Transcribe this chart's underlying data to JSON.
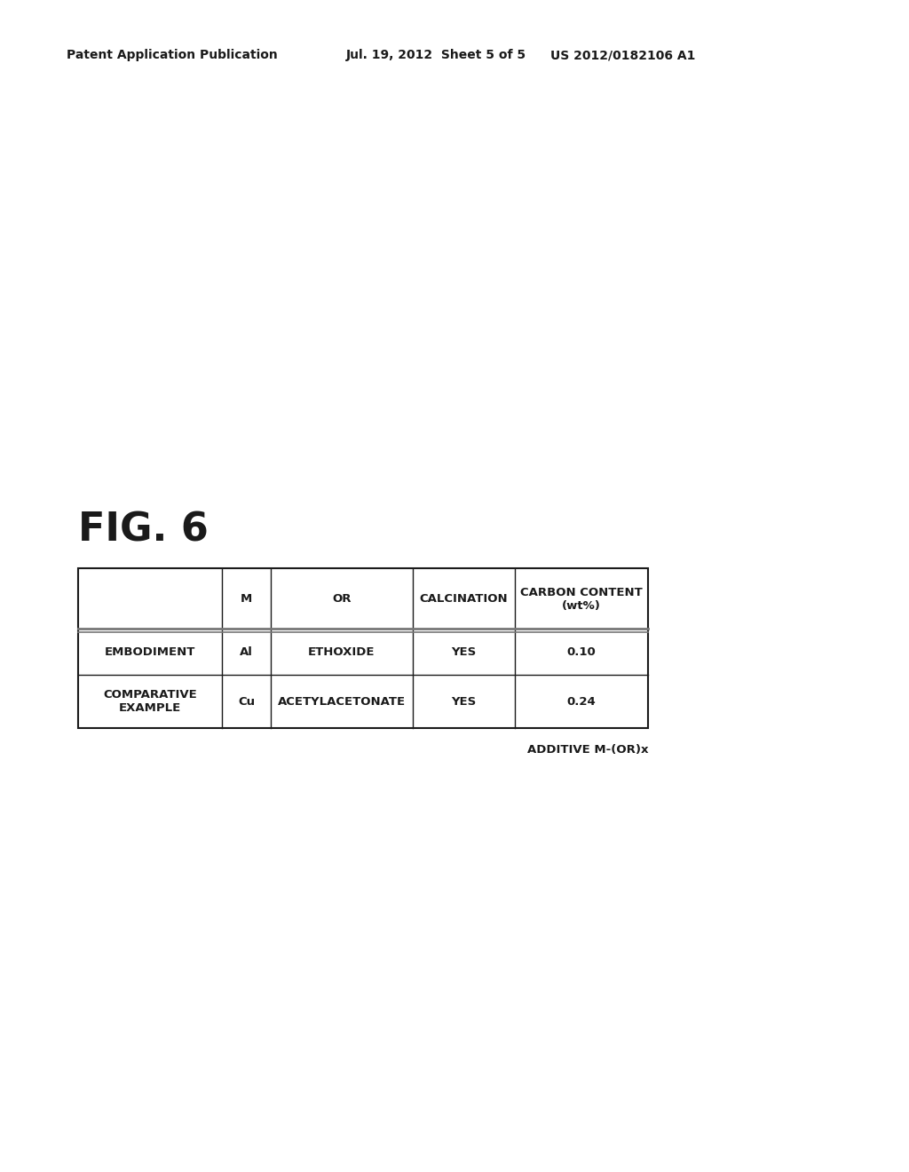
{
  "header_left": "Patent Application Publication",
  "header_mid": "Jul. 19, 2012  Sheet 5 of 5",
  "header_right": "US 2012/0182106 A1",
  "fig_label": "FIG. 6",
  "table": {
    "col_headers": [
      "",
      "M",
      "OR",
      "CALCINATION",
      "CARBON CONTENT\n(wt%)"
    ],
    "rows": [
      [
        "EMBODIMENT",
        "Al",
        "ETHOXIDE",
        "YES",
        "0.10"
      ],
      [
        "COMPARATIVE\nEXAMPLE",
        "Cu",
        "ACETYLACETONATE",
        "YES",
        "0.24"
      ]
    ]
  },
  "footnote": "ADDITIVE M-(OR)x",
  "bg_color": "#ffffff",
  "text_color": "#1a1a1a",
  "line_color": "#1a1a1a",
  "double_line_color": "#777777"
}
